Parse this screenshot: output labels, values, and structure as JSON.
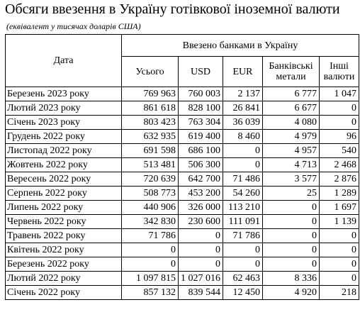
{
  "title": "Обсяги ввезення в Україну готівкової іноземної валюти",
  "subtitle": "(еквівалент у тисячах доларів США)",
  "table": {
    "date_header": "Дата",
    "group_header": "Ввезено банками в Україну",
    "columns": [
      "Усього",
      "USD",
      "EUR",
      "Банківські метали",
      "Інші валюти"
    ],
    "rows": [
      {
        "date": "Березень 2023 року",
        "values": [
          "769 963",
          "760 003",
          "2 137",
          "6 777",
          "1 047"
        ]
      },
      {
        "date": "Лютий 2023 року",
        "values": [
          "861 618",
          "828 100",
          "26 841",
          "6 677",
          "0"
        ]
      },
      {
        "date": "Січень 2023 року",
        "values": [
          "803 423",
          "763 304",
          "36 039",
          "4 080",
          "0"
        ]
      },
      {
        "date": "Грудень 2022 року",
        "values": [
          "632 935",
          "619 400",
          "8 460",
          "4 979",
          "96"
        ]
      },
      {
        "date": "Листопад 2022 року",
        "values": [
          "691 598",
          "686 100",
          "0",
          "4 957",
          "540"
        ]
      },
      {
        "date": "Жовтень 2022 року",
        "values": [
          "513 481",
          "506 300",
          "0",
          "4 713",
          "2 468"
        ]
      },
      {
        "date": "Вересень 2022 року",
        "values": [
          "720 639",
          "642 700",
          "71 486",
          "3 577",
          "2 876"
        ]
      },
      {
        "date": "Серпень 2022 року",
        "values": [
          "508 773",
          "453 200",
          "54 260",
          "25",
          "1 289"
        ]
      },
      {
        "date": "Липень 2022 року",
        "values": [
          "440 906",
          "326 000",
          "113 210",
          "0",
          "1 697"
        ]
      },
      {
        "date": "Червень 2022 року",
        "values": [
          "342 830",
          "230 600",
          "111 091",
          "0",
          "1 139"
        ]
      },
      {
        "date": "Травень 2022 року",
        "values": [
          "71 786",
          "0",
          "71 786",
          "0",
          "0"
        ]
      },
      {
        "date": "Квітень 2022 року",
        "values": [
          "0",
          "0",
          "0",
          "0",
          "0"
        ]
      },
      {
        "date": "Березень 2022 року",
        "values": [
          "0",
          "0",
          "0",
          "0",
          "0"
        ]
      },
      {
        "date": "Лютий 2022 року",
        "values": [
          "1 097 815",
          "1 027 016",
          "62 463",
          "8 336",
          "0"
        ]
      },
      {
        "date": "Січень 2022 року",
        "values": [
          "857 132",
          "839 544",
          "12 450",
          "4 920",
          "218"
        ]
      }
    ]
  }
}
